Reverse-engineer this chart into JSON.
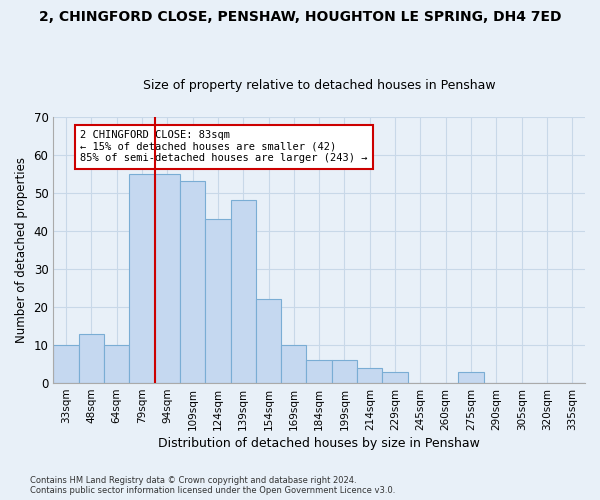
{
  "title1": "2, CHINGFORD CLOSE, PENSHAW, HOUGHTON LE SPRING, DH4 7ED",
  "title2": "Size of property relative to detached houses in Penshaw",
  "xlabel": "Distribution of detached houses by size in Penshaw",
  "ylabel": "Number of detached properties",
  "categories": [
    "33sqm",
    "48sqm",
    "64sqm",
    "79sqm",
    "94sqm",
    "109sqm",
    "124sqm",
    "139sqm",
    "154sqm",
    "169sqm",
    "184sqm",
    "199sqm",
    "214sqm",
    "229sqm",
    "245sqm",
    "260sqm",
    "275sqm",
    "290sqm",
    "305sqm",
    "320sqm",
    "335sqm"
  ],
  "values": [
    10,
    13,
    10,
    55,
    55,
    53,
    43,
    48,
    22,
    10,
    6,
    6,
    4,
    3,
    0,
    0,
    3,
    0,
    0,
    0,
    0
  ],
  "bar_color": "#c5d8f0",
  "bar_edge_color": "#7aadd4",
  "vline_x": 3.5,
  "vline_color": "#cc0000",
  "annotation_line1": "2 CHINGFORD CLOSE: 83sqm",
  "annotation_line2": "← 15% of detached houses are smaller (42)",
  "annotation_line3": "85% of semi-detached houses are larger (243) →",
  "annotation_box_color": "#ffffff",
  "annotation_box_edge": "#cc0000",
  "ylim": [
    0,
    70
  ],
  "yticks": [
    0,
    10,
    20,
    30,
    40,
    50,
    60,
    70
  ],
  "footnote": "Contains HM Land Registry data © Crown copyright and database right 2024.\nContains public sector information licensed under the Open Government Licence v3.0.",
  "background_color": "#e8f0f8",
  "plot_bg_color": "#e8f0f8",
  "grid_color": "#c8d8e8",
  "title1_fontsize": 10,
  "title2_fontsize": 9,
  "bar_width": 1.0
}
